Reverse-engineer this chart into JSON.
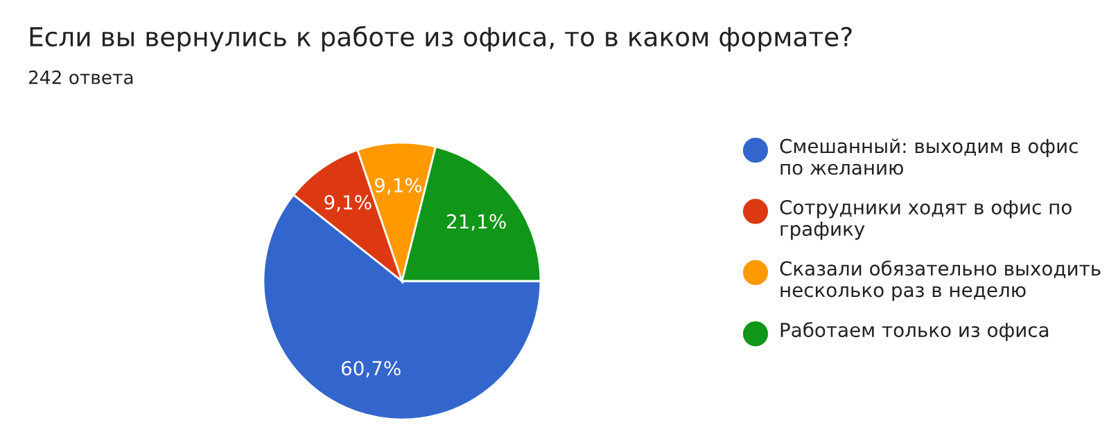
{
  "chart_data": {
    "type": "pie",
    "title": "Если вы вернулись к работе из офиса, то в каком формате?",
    "subtitle": "242 ответа",
    "categories": [
      "Смешанный: выходим в офис по желанию",
      "Сотрудники ходят в офис по графику",
      "Сказали обязательно выходить несколько раз в неделю",
      "Работаем только из офиса"
    ],
    "values": [
      60.7,
      9.1,
      9.1,
      21.1
    ],
    "colors": [
      "#3366cc",
      "#dc3912",
      "#ff9900",
      "#109618"
    ],
    "value_labels": [
      "60,7%",
      "9,1%",
      "9,1%",
      "21,1%"
    ],
    "legend": "right"
  }
}
